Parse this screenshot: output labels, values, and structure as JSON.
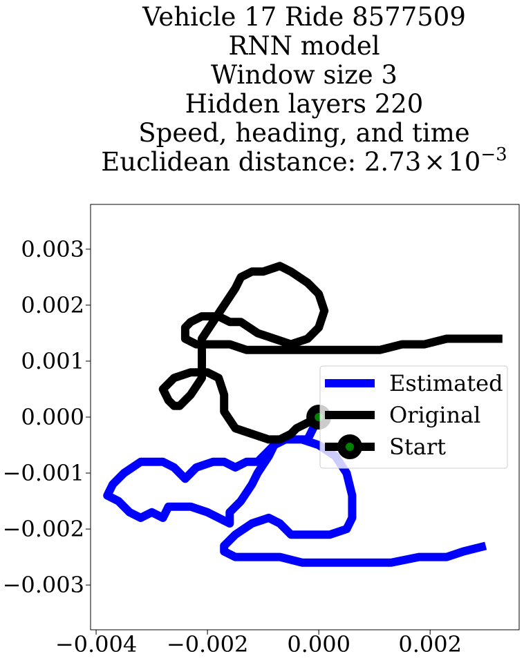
{
  "chart_data": {
    "type": "line",
    "title_lines": [
      "Vehicle 17 Ride 8577509",
      "RNN model",
      "Window size 3",
      "Hidden layers 220",
      "Speed, heading, and time"
    ],
    "title_distance_prefix": "Euclidean distance: 2.73",
    "title_distance_times": "×",
    "title_distance_base": "10",
    "title_distance_exp": "−3",
    "xlabel": "",
    "ylabel": "",
    "xlim": [
      -0.0041,
      0.0036
    ],
    "ylim": [
      -0.0038,
      0.0038
    ],
    "xticks": [
      {
        "value": -0.004,
        "label": "−0.004"
      },
      {
        "value": -0.002,
        "label": "−0.002"
      },
      {
        "value": 0.0,
        "label": "0.000"
      },
      {
        "value": 0.002,
        "label": "0.002"
      }
    ],
    "yticks": [
      {
        "value": 0.003,
        "label": "0.003"
      },
      {
        "value": 0.002,
        "label": "0.002"
      },
      {
        "value": 0.001,
        "label": "0.001"
      },
      {
        "value": 0.0,
        "label": "0.000"
      },
      {
        "value": -0.001,
        "label": "−0.001"
      },
      {
        "value": -0.002,
        "label": "−0.002"
      },
      {
        "value": -0.003,
        "label": "−0.003"
      }
    ],
    "grid": false,
    "legend_position": "right",
    "series": [
      {
        "name": "Estimated",
        "color": "#0000ff",
        "points": [
          [
            0.0,
            0.0
          ],
          [
            -0.0002,
            -0.0004
          ],
          [
            -0.0004,
            -0.0004
          ],
          [
            -0.0006,
            -0.0004
          ],
          [
            -0.0008,
            -0.0005
          ],
          [
            -0.0009,
            -0.0007
          ],
          [
            -0.0011,
            -0.001
          ],
          [
            -0.0012,
            -0.0012
          ],
          [
            -0.0014,
            -0.0015
          ],
          [
            -0.0016,
            -0.0017
          ],
          [
            -0.0016,
            -0.0019
          ],
          [
            -0.002,
            -0.0017
          ],
          [
            -0.0023,
            -0.0016
          ],
          [
            -0.0027,
            -0.0016
          ],
          [
            -0.0028,
            -0.0018
          ],
          [
            -0.003,
            -0.0017
          ],
          [
            -0.0032,
            -0.0018
          ],
          [
            -0.0034,
            -0.0017
          ],
          [
            -0.0036,
            -0.0015
          ],
          [
            -0.0038,
            -0.0014
          ],
          [
            -0.0037,
            -0.0012
          ],
          [
            -0.0035,
            -0.001
          ],
          [
            -0.0032,
            -0.0008
          ],
          [
            -0.003,
            -0.0008
          ],
          [
            -0.0028,
            -0.0008
          ],
          [
            -0.0026,
            -0.0009
          ],
          [
            -0.0025,
            -0.001
          ],
          [
            -0.0024,
            -0.0011
          ],
          [
            -0.0023,
            -0.001
          ],
          [
            -0.0022,
            -0.0009
          ],
          [
            -0.0019,
            -0.0008
          ],
          [
            -0.0017,
            -0.0008
          ],
          [
            -0.0015,
            -0.0009
          ],
          [
            -0.0013,
            -0.0008
          ],
          [
            -0.0011,
            -0.0008
          ],
          [
            -0.001,
            -0.0007
          ],
          [
            -0.0009,
            -0.0006
          ],
          [
            -0.0008,
            -0.0005
          ],
          [
            -0.0006,
            -0.0004
          ],
          [
            -0.0003,
            -0.0004
          ],
          [
            0.0,
            -0.0005
          ],
          [
            0.0003,
            -0.0007
          ],
          [
            0.0005,
            -0.001
          ],
          [
            0.0006,
            -0.0014
          ],
          [
            0.0006,
            -0.0018
          ],
          [
            0.0005,
            -0.002
          ],
          [
            0.0002,
            -0.0021
          ],
          [
            -0.0002,
            -0.0021
          ],
          [
            -0.0005,
            -0.0021
          ],
          [
            -0.0007,
            -0.0019
          ],
          [
            -0.0009,
            -0.0018
          ],
          [
            -0.0012,
            -0.0019
          ],
          [
            -0.0015,
            -0.0021
          ],
          [
            -0.0017,
            -0.0023
          ],
          [
            -0.0017,
            -0.0024
          ],
          [
            -0.0015,
            -0.0025
          ],
          [
            -0.0012,
            -0.0025
          ],
          [
            -0.001,
            -0.0025
          ],
          [
            -0.0007,
            -0.0025
          ],
          [
            -0.0003,
            -0.0026
          ],
          [
            0.0,
            -0.0026
          ],
          [
            0.0004,
            -0.0026
          ],
          [
            0.0009,
            -0.0026
          ],
          [
            0.0013,
            -0.0026
          ],
          [
            0.0018,
            -0.0025
          ],
          [
            0.0023,
            -0.0025
          ],
          [
            0.0026,
            -0.0024
          ],
          [
            0.003,
            -0.0023
          ]
        ]
      },
      {
        "name": "Original",
        "color": "#000000",
        "points": [
          [
            0.0,
            0.0
          ],
          [
            -0.0002,
            -0.0001
          ],
          [
            -0.0004,
            -0.0002
          ],
          [
            -0.0005,
            -0.0003
          ],
          [
            -0.0007,
            -0.0004
          ],
          [
            -0.0008,
            -0.0004
          ],
          [
            -0.0009,
            -0.0004
          ],
          [
            -0.0012,
            -0.0003
          ],
          [
            -0.0015,
            -0.0002
          ],
          [
            -0.0017,
            0.0001
          ],
          [
            -0.0017,
            0.0004
          ],
          [
            -0.0018,
            0.0007
          ],
          [
            -0.002,
            0.0008
          ],
          [
            -0.0021,
            0.0008
          ],
          [
            -0.0023,
            0.0008
          ],
          [
            -0.0026,
            0.0007
          ],
          [
            -0.0028,
            0.0005
          ],
          [
            -0.0027,
            0.0003
          ],
          [
            -0.0026,
            0.0002
          ],
          [
            -0.0025,
            0.0002
          ],
          [
            -0.0023,
            0.0004
          ],
          [
            -0.0021,
            0.0007
          ],
          [
            -0.0021,
            0.0011
          ],
          [
            -0.0021,
            0.0014
          ],
          [
            -0.0019,
            0.0017
          ],
          [
            -0.0017,
            0.002
          ],
          [
            -0.0015,
            0.0023
          ],
          [
            -0.0014,
            0.0025
          ],
          [
            -0.0012,
            0.0026
          ],
          [
            -0.001,
            0.0026
          ],
          [
            -0.0007,
            0.0027
          ],
          [
            -0.0005,
            0.0026
          ],
          [
            -0.0002,
            0.0024
          ],
          [
            0.0,
            0.0022
          ],
          [
            0.0001,
            0.0019
          ],
          [
            0.0,
            0.0016
          ],
          [
            -0.0002,
            0.0014
          ],
          [
            -0.0005,
            0.0013
          ],
          [
            -0.0008,
            0.0014
          ],
          [
            -0.0011,
            0.0015
          ],
          [
            -0.0014,
            0.0017
          ],
          [
            -0.0016,
            0.0017
          ],
          [
            -0.0018,
            0.0018
          ],
          [
            -0.0021,
            0.0018
          ],
          [
            -0.0023,
            0.0017
          ],
          [
            -0.0024,
            0.0016
          ],
          [
            -0.0024,
            0.0014
          ],
          [
            -0.0022,
            0.0013
          ],
          [
            -0.0019,
            0.0013
          ],
          [
            -0.0016,
            0.0013
          ],
          [
            -0.0013,
            0.0012
          ],
          [
            -0.001,
            0.0012
          ],
          [
            -0.0007,
            0.0012
          ],
          [
            -0.0003,
            0.0012
          ],
          [
            0.0,
            0.0012
          ],
          [
            0.0004,
            0.0012
          ],
          [
            0.0008,
            0.0012
          ],
          [
            0.0011,
            0.0012
          ],
          [
            0.0015,
            0.0013
          ],
          [
            0.0019,
            0.0013
          ],
          [
            0.0023,
            0.0014
          ],
          [
            0.0026,
            0.0014
          ],
          [
            0.003,
            0.0014
          ],
          [
            0.0033,
            0.0014
          ]
        ]
      }
    ],
    "start_marker": {
      "name": "Start",
      "point": [
        0.0,
        0.0
      ],
      "edge_color": "#000000",
      "face_color": "#008000"
    }
  }
}
